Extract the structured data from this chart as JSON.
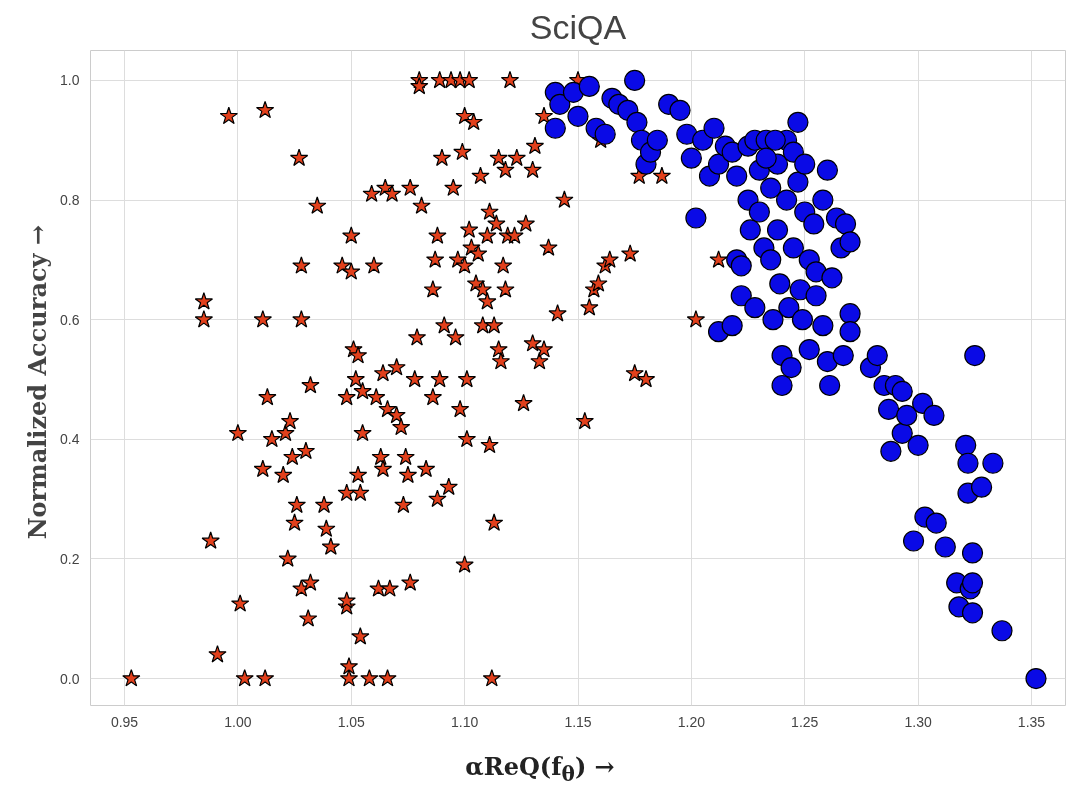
{
  "chart_data": {
    "type": "scatter",
    "title": "SciQA",
    "xlabel": "αReQ(f$_{θ}$) →",
    "ylabel": "Normalized  Accuracy →",
    "xlim": [
      0.935,
      1.365
    ],
    "ylim": [
      -0.045,
      1.05
    ],
    "xticks": [
      {
        "value": 0.95,
        "label": "0.95"
      },
      {
        "value": 1.0,
        "label": "1.00"
      },
      {
        "value": 1.05,
        "label": "1.05"
      },
      {
        "value": 1.1,
        "label": "1.10"
      },
      {
        "value": 1.15,
        "label": "1.15"
      },
      {
        "value": 1.2,
        "label": "1.20"
      },
      {
        "value": 1.25,
        "label": "1.25"
      },
      {
        "value": 1.3,
        "label": "1.30"
      },
      {
        "value": 1.35,
        "label": "1.35"
      }
    ],
    "yticks": [
      {
        "value": 0,
        "label": "0.0"
      },
      {
        "value": 0.2,
        "label": "0.2"
      },
      {
        "value": 0.4,
        "label": "0.4"
      },
      {
        "value": 0.6,
        "label": "0.6"
      },
      {
        "value": 0.8,
        "label": "0.8"
      },
      {
        "value": 1.0,
        "label": "1.0"
      }
    ],
    "grid": true,
    "series": [
      {
        "color": "#e2401c",
        "marker": "star",
        "x": [
          0.953,
          0.985,
          0.985,
          0.996,
          1.012,
          0.988,
          0.991,
          1.0,
          1.001,
          1.003,
          1.012,
          1.011,
          1.011,
          1.013,
          1.015,
          1.02,
          1.021,
          1.022,
          1.023,
          1.024,
          1.025,
          1.026,
          1.027,
          1.028,
          1.028,
          1.028,
          1.03,
          1.031,
          1.032,
          1.032,
          1.035,
          1.038,
          1.039,
          1.041,
          1.046,
          1.048,
          1.048,
          1.048,
          1.048,
          1.049,
          1.049,
          1.05,
          1.05,
          1.051,
          1.052,
          1.053,
          1.053,
          1.054,
          1.054,
          1.055,
          1.055,
          1.058,
          1.059,
          1.06,
          1.061,
          1.062,
          1.063,
          1.064,
          1.064,
          1.065,
          1.066,
          1.066,
          1.067,
          1.068,
          1.07,
          1.07,
          1.072,
          1.073,
          1.074,
          1.075,
          1.076,
          1.076,
          1.078,
          1.079,
          1.08,
          1.08,
          1.081,
          1.083,
          1.086,
          1.086,
          1.087,
          1.088,
          1.088,
          1.089,
          1.089,
          1.09,
          1.091,
          1.093,
          1.094,
          1.095,
          1.096,
          1.097,
          1.098,
          1.098,
          1.099,
          1.1,
          1.1,
          1.1,
          1.101,
          1.101,
          1.102,
          1.102,
          1.103,
          1.104,
          1.105,
          1.106,
          1.107,
          1.108,
          1.108,
          1.11,
          1.11,
          1.111,
          1.111,
          1.112,
          1.113,
          1.113,
          1.114,
          1.115,
          1.115,
          1.116,
          1.117,
          1.118,
          1.118,
          1.119,
          1.12,
          1.122,
          1.123,
          1.126,
          1.127,
          1.13,
          1.131,
          1.13,
          1.133,
          1.135,
          1.135,
          1.137,
          1.141,
          1.144,
          1.15,
          1.153,
          1.155,
          1.157,
          1.159,
          1.16,
          1.162,
          1.164,
          1.173,
          1.175,
          1.177,
          1.18,
          1.187,
          1.202,
          1.212
        ],
        "values": [
          0.0,
          0.63,
          0.6,
          0.94,
          0.95,
          0.23,
          0.04,
          0.41,
          0.125,
          0.0,
          0.0,
          0.6,
          0.35,
          0.47,
          0.4,
          0.34,
          0.41,
          0.2,
          0.43,
          0.37,
          0.26,
          0.29,
          0.87,
          0.6,
          0.69,
          0.15,
          0.38,
          0.1,
          0.49,
          0.16,
          0.79,
          0.29,
          0.25,
          0.22,
          0.69,
          0.31,
          0.47,
          0.12,
          0.13,
          0.0,
          0.02,
          0.68,
          0.74,
          0.55,
          0.5,
          0.54,
          0.34,
          0.31,
          0.07,
          0.41,
          0.48,
          0.0,
          0.81,
          0.69,
          0.47,
          0.15,
          0.37,
          0.35,
          0.51,
          0.82,
          0.0,
          0.45,
          0.15,
          0.81,
          0.52,
          0.44,
          0.42,
          0.29,
          0.37,
          0.34,
          0.82,
          0.16,
          0.5,
          0.57,
          1.0,
          0.99,
          0.79,
          0.35,
          0.47,
          0.65,
          0.7,
          0.3,
          0.74,
          1.0,
          0.5,
          0.87,
          0.59,
          0.32,
          1.0,
          0.82,
          0.57,
          0.7,
          0.45,
          1.0,
          0.88,
          0.94,
          0.19,
          0.69,
          0.5,
          0.4,
          1.0,
          0.75,
          0.72,
          0.93,
          0.66,
          0.71,
          0.84,
          0.65,
          0.59,
          0.74,
          0.63,
          0.78,
          0.39,
          0.0,
          0.26,
          0.59,
          0.76,
          0.87,
          0.55,
          0.53,
          0.69,
          0.65,
          0.85,
          0.74,
          1.0,
          0.74,
          0.87,
          0.46,
          0.76,
          0.85,
          0.89,
          0.56,
          0.53,
          0.55,
          0.94,
          0.72,
          0.61,
          0.8,
          1.0,
          0.43,
          0.62,
          0.65,
          0.66,
          0.9,
          0.69,
          0.7,
          0.71,
          0.51,
          0.84,
          0.5,
          0.84,
          0.6,
          0.7
        ]
      },
      {
        "color": "#0a0ae6",
        "marker": "circle",
        "x": [
          1.14,
          1.14,
          1.142,
          1.148,
          1.15,
          1.155,
          1.158,
          1.162,
          1.165,
          1.168,
          1.172,
          1.175,
          1.176,
          1.178,
          1.18,
          1.182,
          1.185,
          1.19,
          1.195,
          1.198,
          1.2,
          1.202,
          1.205,
          1.208,
          1.21,
          1.212,
          1.215,
          1.218,
          1.22,
          1.22,
          1.222,
          1.222,
          1.225,
          1.225,
          1.226,
          1.228,
          1.228,
          1.23,
          1.23,
          1.232,
          1.233,
          1.235,
          1.235,
          1.236,
          1.238,
          1.238,
          1.239,
          1.24,
          1.24,
          1.242,
          1.242,
          1.243,
          1.244,
          1.245,
          1.245,
          1.247,
          1.247,
          1.248,
          1.249,
          1.25,
          1.25,
          1.252,
          1.252,
          1.254,
          1.255,
          1.255,
          1.258,
          1.258,
          1.26,
          1.26,
          1.261,
          1.262,
          1.264,
          1.266,
          1.267,
          1.268,
          1.27,
          1.27,
          1.27,
          1.279,
          1.282,
          1.285,
          1.287,
          1.288,
          1.29,
          1.293,
          1.293,
          1.295,
          1.298,
          1.3,
          1.302,
          1.303,
          1.307,
          1.308,
          1.312,
          1.317,
          1.318,
          1.321,
          1.322,
          1.322,
          1.323,
          1.324,
          1.324,
          1.324,
          1.325,
          1.328,
          1.333,
          1.337,
          1.352,
          1.212,
          1.218,
          1.233,
          1.237
        ],
        "values": [
          0.98,
          0.92,
          0.96,
          0.98,
          0.94,
          0.99,
          0.92,
          0.91,
          0.97,
          0.96,
          0.95,
          1.0,
          0.93,
          0.9,
          0.86,
          0.88,
          0.9,
          0.96,
          0.95,
          0.91,
          0.87,
          0.77,
          0.9,
          0.84,
          0.92,
          0.86,
          0.89,
          0.88,
          0.84,
          0.7,
          0.69,
          0.64,
          0.89,
          0.8,
          0.75,
          0.9,
          0.62,
          0.85,
          0.78,
          0.72,
          0.9,
          0.82,
          0.7,
          0.6,
          0.86,
          0.75,
          0.66,
          0.54,
          0.49,
          0.9,
          0.8,
          0.62,
          0.52,
          0.88,
          0.72,
          0.93,
          0.83,
          0.65,
          0.6,
          0.78,
          0.86,
          0.7,
          0.55,
          0.76,
          0.68,
          0.64,
          0.8,
          0.59,
          0.85,
          0.53,
          0.49,
          0.67,
          0.77,
          0.72,
          0.54,
          0.76,
          0.73,
          0.61,
          0.58,
          0.52,
          0.54,
          0.49,
          0.45,
          0.38,
          0.49,
          0.48,
          0.41,
          0.44,
          0.23,
          0.39,
          0.46,
          0.27,
          0.44,
          0.26,
          0.22,
          0.16,
          0.12,
          0.39,
          0.36,
          0.31,
          0.15,
          0.11,
          0.21,
          0.16,
          0.54,
          0.32,
          0.36,
          0.08,
          0.0,
          0.58,
          0.59,
          0.87,
          0.9
        ]
      }
    ]
  }
}
